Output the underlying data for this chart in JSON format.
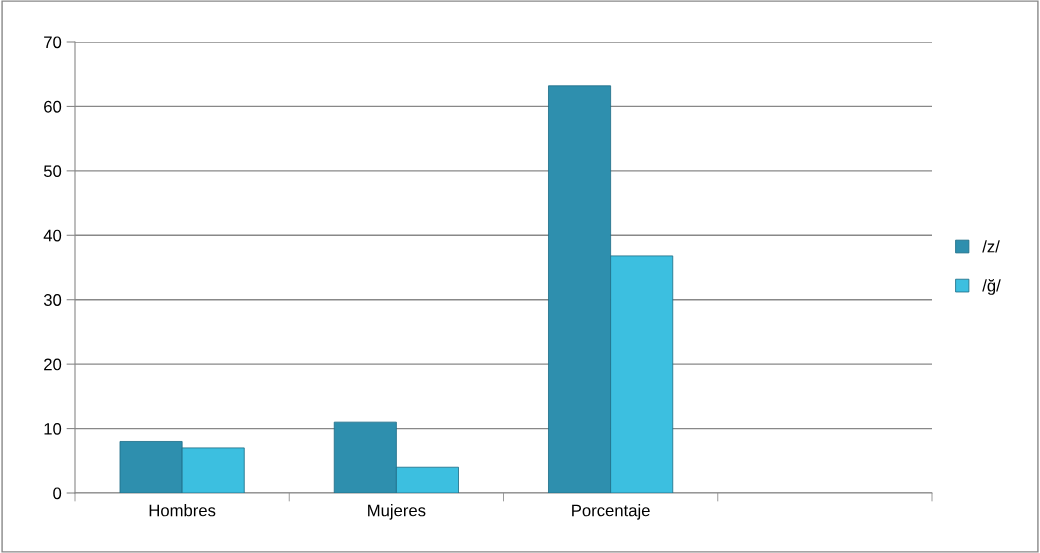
{
  "chart_data": {
    "type": "bar",
    "categories": [
      "Hombres",
      "Mujeres",
      "Porcentaje",
      null
    ],
    "series": [
      {
        "name": "/z/",
        "color": "#2e8fae",
        "values": [
          8,
          11,
          63.2,
          null
        ]
      },
      {
        "name": "/ğ/",
        "color": "#3cbfe0",
        "values": [
          7,
          4,
          36.8,
          null
        ]
      }
    ],
    "ylim": [
      0,
      70
    ],
    "yticks": [
      0,
      10,
      20,
      30,
      40,
      50,
      60,
      70
    ],
    "grid": "y",
    "legend": "right"
  }
}
